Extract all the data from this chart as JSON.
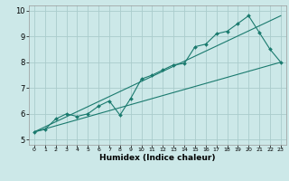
{
  "xlabel": "Humidex (Indice chaleur)",
  "xlim": [
    -0.5,
    23.5
  ],
  "ylim": [
    4.8,
    10.2
  ],
  "yticks": [
    5,
    6,
    7,
    8,
    9,
    10
  ],
  "xticks": [
    0,
    1,
    2,
    3,
    4,
    5,
    6,
    7,
    8,
    9,
    10,
    11,
    12,
    13,
    14,
    15,
    16,
    17,
    18,
    19,
    20,
    21,
    22,
    23
  ],
  "bg_color": "#cce8e8",
  "line_color": "#1a7a6e",
  "grid_color": "#aacccc",
  "series1_x": [
    0,
    1,
    2,
    3,
    4,
    5,
    6,
    7,
    8,
    9,
    10,
    11,
    12,
    13,
    14,
    15,
    16,
    17,
    18,
    19,
    20,
    21,
    22,
    23
  ],
  "series1_y": [
    5.3,
    5.4,
    5.8,
    6.0,
    5.9,
    6.0,
    6.3,
    6.5,
    5.95,
    6.6,
    7.35,
    7.5,
    7.7,
    7.9,
    7.95,
    8.6,
    8.7,
    9.1,
    9.2,
    9.5,
    9.8,
    9.15,
    8.5,
    8.0
  ],
  "series2_x": [
    0,
    23
  ],
  "series2_y": [
    5.3,
    8.0
  ],
  "series3_x": [
    0,
    23
  ],
  "series3_y": [
    5.3,
    9.8
  ]
}
